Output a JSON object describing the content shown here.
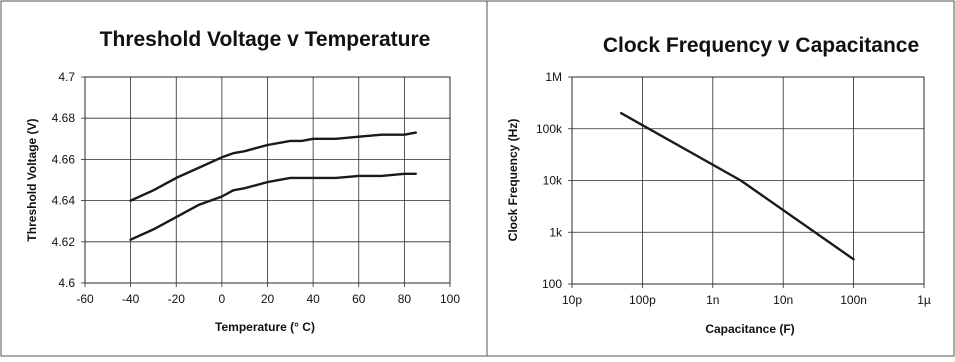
{
  "colors": {
    "line": "#1a1a1a",
    "grid": "#2a2a2a",
    "border": "#555555",
    "background": "#ffffff"
  },
  "chart_data": [
    {
      "type": "line",
      "title": "Threshold Voltage v Temperature",
      "xlabel": "Temperature (° C)",
      "ylabel": "Threshold Voltage (V)",
      "xlim": [
        -60,
        100
      ],
      "ylim": [
        4.6,
        4.7
      ],
      "xticks": [
        -60,
        -40,
        -20,
        0,
        20,
        40,
        60,
        80,
        100
      ],
      "xtick_labels": [
        "-60",
        "-40",
        "-20",
        "0",
        "20",
        "40",
        "60",
        "80",
        "100"
      ],
      "yticks": [
        4.6,
        4.62,
        4.64,
        4.66,
        4.68,
        4.7
      ],
      "ytick_labels": [
        "4.6",
        "4.62",
        "4.64",
        "4.66",
        "4.68",
        "4.7"
      ],
      "grid": true,
      "series": [
        {
          "x": [
            -40,
            -30,
            -20,
            -10,
            0,
            5,
            10,
            20,
            30,
            35,
            40,
            50,
            60,
            70,
            80,
            85
          ],
          "y": [
            4.64,
            4.645,
            4.651,
            4.656,
            4.661,
            4.663,
            4.664,
            4.667,
            4.669,
            4.669,
            4.67,
            4.67,
            4.671,
            4.672,
            4.672,
            4.673
          ]
        },
        {
          "x": [
            -40,
            -30,
            -20,
            -10,
            0,
            5,
            10,
            20,
            30,
            35,
            40,
            50,
            60,
            70,
            80,
            85
          ],
          "y": [
            4.621,
            4.626,
            4.632,
            4.638,
            4.642,
            4.645,
            4.646,
            4.649,
            4.651,
            4.651,
            4.651,
            4.651,
            4.652,
            4.652,
            4.653,
            4.653
          ]
        }
      ]
    },
    {
      "type": "line",
      "title": "Clock Frequency v Capacitance",
      "xlabel": "Capacitance (F)",
      "ylabel": "Clock Frequency (Hz)",
      "x_scale": "log",
      "y_scale": "log",
      "xlim": [
        1e-11,
        1e-06
      ],
      "ylim": [
        100,
        1000000
      ],
      "xticks": [
        1e-11,
        1e-10,
        1e-09,
        1e-08,
        1e-07,
        1e-06
      ],
      "xtick_labels": [
        "10p",
        "100p",
        "1n",
        "10n",
        "100n",
        "1µ"
      ],
      "yticks": [
        100,
        1000,
        10000,
        100000,
        1000000
      ],
      "ytick_labels": [
        "100",
        "1k",
        "10k",
        "100k",
        "1M"
      ],
      "grid": true,
      "series": [
        {
          "x": [
            5e-11,
            2.5e-09,
            1e-07
          ],
          "y": [
            200000,
            10000,
            300
          ]
        }
      ]
    }
  ]
}
